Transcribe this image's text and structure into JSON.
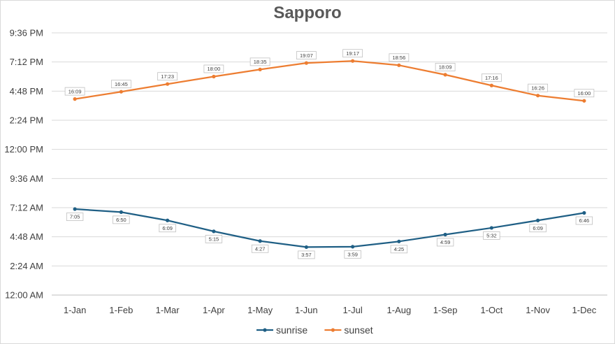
{
  "chart_data": {
    "type": "line",
    "title": "Sapporo",
    "categories": [
      "1-Jan",
      "1-Feb",
      "1-Mar",
      "1-Apr",
      "1-May",
      "1-Jun",
      "1-Jul",
      "1-Aug",
      "1-Sep",
      "1-Oct",
      "1-Nov",
      "1-Dec"
    ],
    "yaxis": {
      "unit": "hours",
      "min": 0,
      "max": 21.6,
      "step": 2.4,
      "tick_labels": [
        "12:00 AM",
        "2:24 AM",
        "4:48 AM",
        "7:12 AM",
        "9:36 AM",
        "12:00 PM",
        "2:24 PM",
        "4:48 PM",
        "7:12 PM",
        "9:36 PM"
      ]
    },
    "grid": true,
    "legend": "bottom",
    "series": [
      {
        "name": "sunrise",
        "color": "#1f5f85",
        "values": [
          7.0833,
          6.8333,
          6.15,
          5.25,
          4.45,
          3.95,
          3.9833,
          4.4167,
          4.9833,
          5.5333,
          6.15,
          6.7667
        ],
        "labels": [
          "7:05",
          "6:50",
          "6:09",
          "5:15",
          "4:27",
          "3:57",
          "3:59",
          "4:25",
          "4:59",
          "5:32",
          "6:09",
          "6:46"
        ]
      },
      {
        "name": "sunset",
        "color": "#ed7d31",
        "values": [
          16.15,
          16.75,
          17.3833,
          18.0,
          18.5833,
          19.1167,
          19.2833,
          18.9333,
          18.15,
          17.2667,
          16.4333,
          16.0
        ],
        "labels": [
          "16:09",
          "16:45",
          "17:23",
          "18:00",
          "18:35",
          "19:07",
          "19:17",
          "18:56",
          "18:09",
          "17:16",
          "16:26",
          "16:00"
        ]
      }
    ]
  }
}
